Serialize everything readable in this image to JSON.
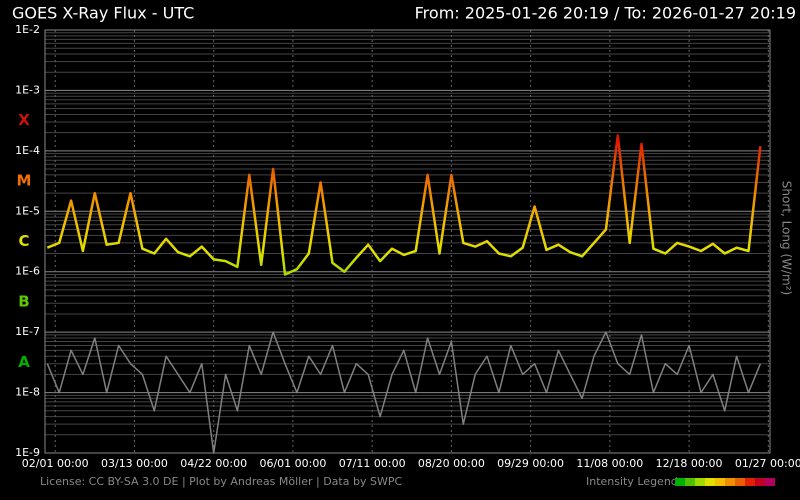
{
  "chart_data": {
    "type": "line",
    "title": "GOES X-Ray Flux - UTC",
    "subtitle": "From: 2025-01-26 20:19  /  To: 2026-01-27 20:19",
    "y2_label": "Short, Long (W/m²)",
    "credits": "License: CC BY-SA 3.0 DE | Plot by Andreas Möller | Data by SWPC",
    "log_scale": true,
    "grid": true,
    "xlim": [
      "2025-01-26 20:19",
      "2026-01-27 20:19"
    ],
    "xticks": [
      {
        "value": "2025-02-01 00:00",
        "label": "02/01 00:00"
      },
      {
        "value": "2025-03-13 00:00",
        "label": "03/13 00:00"
      },
      {
        "value": "2025-04-22 00:00",
        "label": "04/22 00:00"
      },
      {
        "value": "2025-06-01 00:00",
        "label": "06/01 00:00"
      },
      {
        "value": "2025-07-11 00:00",
        "label": "07/11 00:00"
      },
      {
        "value": "2025-08-20 00:00",
        "label": "08/20 00:00"
      },
      {
        "value": "2025-09-29 00:00",
        "label": "09/29 00:00"
      },
      {
        "value": "2025-11-08 00:00",
        "label": "11/08 00:00"
      },
      {
        "value": "2025-12-18 00:00",
        "label": "12/18 00:00"
      },
      {
        "value": "2026-01-27 00:00",
        "label": "01/27 00:00"
      }
    ],
    "ylim": [
      1e-09,
      0.01
    ],
    "yticks": [
      {
        "value": 1e-09,
        "label": "1E-9"
      },
      {
        "value": 1e-08,
        "label": "1E-8"
      },
      {
        "value": 1e-07,
        "label": "1E-7"
      },
      {
        "value": 1e-06,
        "label": "1E-6"
      },
      {
        "value": 1e-05,
        "label": "1E-5"
      },
      {
        "value": 0.0001,
        "label": "1E-4"
      },
      {
        "value": 0.001,
        "label": "1E-3"
      },
      {
        "value": 0.01,
        "label": "1E-2"
      }
    ],
    "flare_classes": [
      {
        "label": "A",
        "value": 1e-08,
        "color": "#00b000"
      },
      {
        "label": "B",
        "value": 1e-07,
        "color": "#60c800"
      },
      {
        "label": "C",
        "value": 1e-06,
        "color": "#e0e000"
      },
      {
        "label": "M",
        "value": 1e-05,
        "color": "#f07000"
      },
      {
        "label": "X",
        "value": 0.0001,
        "color": "#d01010"
      }
    ],
    "intensity_legend": {
      "label": "Intensity Legend",
      "low": 1e-07,
      "high": 0.001,
      "colors": [
        "#00b000",
        "#50c000",
        "#a0d800",
        "#e0e000",
        "#f0c000",
        "#f09000",
        "#e86000",
        "#e02000",
        "#c00020",
        "#b00060"
      ]
    },
    "x": [
      "2025-01-28 00:00",
      "2025-02-03 00:00",
      "2025-02-09 00:00",
      "2025-02-15 00:00",
      "2025-02-21 00:00",
      "2025-02-27 00:00",
      "2025-03-05 00:00",
      "2025-03-11 00:00",
      "2025-03-17 00:00",
      "2025-03-23 00:00",
      "2025-03-29 00:00",
      "2025-04-04 00:00",
      "2025-04-10 00:00",
      "2025-04-16 00:00",
      "2025-04-22 00:00",
      "2025-04-28 00:00",
      "2025-05-04 00:00",
      "2025-05-10 00:00",
      "2025-05-16 00:00",
      "2025-05-22 00:00",
      "2025-05-28 00:00",
      "2025-06-03 00:00",
      "2025-06-09 00:00",
      "2025-06-15 00:00",
      "2025-06-21 00:00",
      "2025-06-27 00:00",
      "2025-07-03 00:00",
      "2025-07-09 00:00",
      "2025-07-15 00:00",
      "2025-07-21 00:00",
      "2025-07-27 00:00",
      "2025-08-02 00:00",
      "2025-08-08 00:00",
      "2025-08-14 00:00",
      "2025-08-20 00:00",
      "2025-08-26 00:00",
      "2025-09-01 00:00",
      "2025-09-07 00:00",
      "2025-09-13 00:00",
      "2025-09-19 00:00",
      "2025-09-25 00:00",
      "2025-10-01 00:00",
      "2025-10-07 00:00",
      "2025-10-13 00:00",
      "2025-10-19 00:00",
      "2025-10-25 00:00",
      "2025-10-31 00:00",
      "2025-11-06 00:00",
      "2025-11-12 00:00",
      "2025-11-18 00:00",
      "2025-11-24 00:00",
      "2025-11-30 00:00",
      "2025-12-06 00:00",
      "2025-12-12 00:00",
      "2025-12-18 00:00",
      "2025-12-24 00:00",
      "2025-12-30 00:00",
      "2026-01-05 00:00",
      "2026-01-11 00:00",
      "2026-01-17 00:00",
      "2026-01-23 00:00"
    ],
    "series": [
      {
        "name": "Short",
        "color": "#808080",
        "values": [
          3e-08,
          1e-08,
          5e-08,
          2e-08,
          8e-08,
          1e-08,
          6e-08,
          3e-08,
          2e-08,
          5e-09,
          4e-08,
          2e-08,
          1e-08,
          3e-08,
          1e-09,
          2e-08,
          5e-09,
          6e-08,
          2e-08,
          1e-07,
          3e-08,
          1e-08,
          4e-08,
          2e-08,
          6e-08,
          1e-08,
          3e-08,
          2e-08,
          4e-09,
          2e-08,
          5e-08,
          1e-08,
          8e-08,
          2e-08,
          7e-08,
          3e-09,
          2e-08,
          4e-08,
          1e-08,
          6e-08,
          2e-08,
          3e-08,
          1e-08,
          5e-08,
          2e-08,
          8e-09,
          4e-08,
          1e-07,
          3e-08,
          2e-08,
          9e-08,
          1e-08,
          3e-08,
          2e-08,
          6e-08,
          1e-08,
          2e-08,
          5e-09,
          4e-08,
          1e-08,
          3e-08
        ]
      },
      {
        "name": "Long",
        "color_by": "intensity",
        "values": [
          2.5e-06,
          3e-06,
          1.5e-05,
          2.2e-06,
          2e-05,
          2.8e-06,
          3e-06,
          2e-05,
          2.4e-06,
          2e-06,
          3.5e-06,
          2.1e-06,
          1.8e-06,
          2.6e-06,
          1.6e-06,
          1.5e-06,
          1.2e-06,
          4e-05,
          1.3e-06,
          5e-05,
          9e-07,
          1.1e-06,
          2e-06,
          3e-05,
          1.4e-06,
          1e-06,
          1.7e-06,
          2.8e-06,
          1.5e-06,
          2.4e-06,
          1.9e-06,
          2.2e-06,
          4e-05,
          2e-06,
          4e-05,
          3e-06,
          2.6e-06,
          3.2e-06,
          2e-06,
          1.8e-06,
          2.5e-06,
          1.2e-05,
          2.3e-06,
          2.8e-06,
          2.1e-06,
          1.8e-06,
          3e-06,
          5e-06,
          0.00018,
          3e-06,
          0.00013,
          2.4e-06,
          2e-06,
          3e-06,
          2.6e-06,
          2.2e-06,
          2.9e-06,
          2e-06,
          2.5e-06,
          2.2e-06,
          0.00012
        ]
      }
    ]
  }
}
